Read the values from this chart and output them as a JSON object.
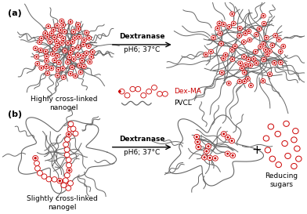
{
  "title_a": "(a)",
  "title_b": "(b)",
  "label_highly": "Highly cross-linked\nnanogel",
  "label_slightly": "Slightly cross-linked\nnanogel",
  "label_dexma": "Dex-MA",
  "label_pvcl": "PVCL",
  "label_reducing": "Reducing\nsugars",
  "label_plus": "+",
  "bg_color": "#ffffff",
  "gray": "#666666",
  "red_edge": "#cc0000",
  "red_fill_open": "#ffffff",
  "red_fill_solid": "#cc0000",
  "font_size_small": 6.5,
  "font_size_title": 8
}
